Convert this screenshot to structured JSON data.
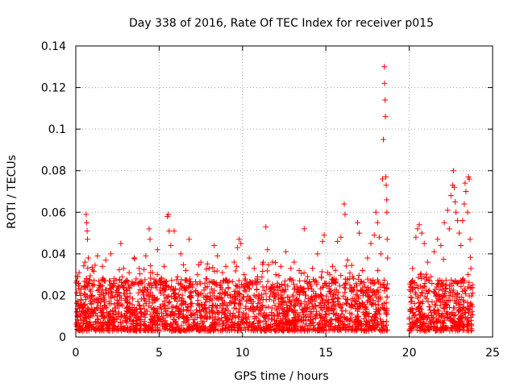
{
  "chart_data": {
    "type": "scatter",
    "title": "Day 338 of 2016, Rate Of TEC Index for receiver p015",
    "xlabel": "GPS time / hours",
    "ylabel": "ROTI / TECUs",
    "xlim": [
      0,
      25
    ],
    "ylim": [
      0,
      0.14
    ],
    "xticks": [
      0,
      5,
      10,
      15,
      20,
      25
    ],
    "xtick_labels": [
      "0",
      "5",
      "10",
      "15",
      "20",
      "25"
    ],
    "yticks": [
      0,
      0.02,
      0.04,
      0.06,
      0.08,
      0.1,
      0.12,
      0.14
    ],
    "ytick_labels": [
      "0",
      "0.02",
      "0.04",
      "0.06",
      "0.08",
      "0.1",
      "0.12",
      "0.14"
    ],
    "grid": true,
    "marker": "+",
    "color": "#ff0000",
    "data_gap_hours": [
      18.7,
      20.0
    ],
    "series": [
      {
        "name": "ROTI",
        "points": [
          [
            0.05,
            0.012
          ],
          [
            0.12,
            0.029
          ],
          [
            0.2,
            0.031
          ],
          [
            0.3,
            0.02
          ],
          [
            0.45,
            0.015
          ],
          [
            0.55,
            0.036
          ],
          [
            0.62,
            0.059
          ],
          [
            0.65,
            0.055
          ],
          [
            0.68,
            0.051
          ],
          [
            0.7,
            0.047
          ],
          [
            0.75,
            0.038
          ],
          [
            0.9,
            0.022
          ],
          [
            1.1,
            0.018
          ],
          [
            1.3,
            0.039
          ],
          [
            1.5,
            0.025
          ],
          [
            1.6,
            0.034
          ],
          [
            1.8,
            0.037
          ],
          [
            2.0,
            0.016
          ],
          [
            2.1,
            0.04
          ],
          [
            2.3,
            0.028
          ],
          [
            2.7,
            0.045
          ],
          [
            2.9,
            0.024
          ],
          [
            3.2,
            0.031
          ],
          [
            3.5,
            0.038
          ],
          [
            3.8,
            0.033
          ],
          [
            4.0,
            0.022
          ],
          [
            4.2,
            0.039
          ],
          [
            4.4,
            0.052
          ],
          [
            4.45,
            0.047
          ],
          [
            4.6,
            0.031
          ],
          [
            4.9,
            0.042
          ],
          [
            5.1,
            0.025
          ],
          [
            5.3,
            0.034
          ],
          [
            5.5,
            0.058
          ],
          [
            5.55,
            0.059
          ],
          [
            5.6,
            0.051
          ],
          [
            5.7,
            0.044
          ],
          [
            5.9,
            0.051
          ],
          [
            6.1,
            0.029
          ],
          [
            6.3,
            0.04
          ],
          [
            6.6,
            0.032
          ],
          [
            6.8,
            0.047
          ],
          [
            7.0,
            0.024
          ],
          [
            7.3,
            0.03
          ],
          [
            7.5,
            0.036
          ],
          [
            7.8,
            0.028
          ],
          [
            8.0,
            0.033
          ],
          [
            8.3,
            0.044
          ],
          [
            8.5,
            0.039
          ],
          [
            8.8,
            0.031
          ],
          [
            9.0,
            0.034
          ],
          [
            9.2,
            0.027
          ],
          [
            9.5,
            0.036
          ],
          [
            9.7,
            0.043
          ],
          [
            9.8,
            0.047
          ],
          [
            9.9,
            0.045
          ],
          [
            10.1,
            0.03
          ],
          [
            10.4,
            0.038
          ],
          [
            10.7,
            0.033
          ],
          [
            10.9,
            0.029
          ],
          [
            11.2,
            0.035
          ],
          [
            11.4,
            0.053
          ],
          [
            11.5,
            0.042
          ],
          [
            11.8,
            0.036
          ],
          [
            12.0,
            0.03
          ],
          [
            12.3,
            0.034
          ],
          [
            12.6,
            0.041
          ],
          [
            12.9,
            0.033
          ],
          [
            13.1,
            0.036
          ],
          [
            13.4,
            0.032
          ],
          [
            13.7,
            0.052
          ],
          [
            13.9,
            0.029
          ],
          [
            14.2,
            0.033
          ],
          [
            14.5,
            0.04
          ],
          [
            14.8,
            0.046
          ],
          [
            14.9,
            0.049
          ],
          [
            15.1,
            0.031
          ],
          [
            15.4,
            0.034
          ],
          [
            15.7,
            0.046
          ],
          [
            15.9,
            0.048
          ],
          [
            16.1,
            0.064
          ],
          [
            16.15,
            0.059
          ],
          [
            16.3,
            0.037
          ],
          [
            16.6,
            0.029
          ],
          [
            16.9,
            0.055
          ],
          [
            17.0,
            0.05
          ],
          [
            17.2,
            0.032
          ],
          [
            17.5,
            0.038
          ],
          [
            17.7,
            0.045
          ],
          [
            17.9,
            0.049
          ],
          [
            18.0,
            0.06
          ],
          [
            18.1,
            0.055
          ],
          [
            18.2,
            0.048
          ],
          [
            18.3,
            0.04
          ],
          [
            18.4,
            0.076
          ],
          [
            18.45,
            0.095
          ],
          [
            18.5,
            0.13
          ],
          [
            18.52,
            0.122
          ],
          [
            18.55,
            0.114
          ],
          [
            18.57,
            0.106
          ],
          [
            18.6,
            0.077
          ],
          [
            18.62,
            0.073
          ],
          [
            18.65,
            0.066
          ],
          [
            18.66,
            0.06
          ],
          [
            18.68,
            0.047
          ],
          [
            18.7,
            0.038
          ],
          [
            20.1,
            0.022
          ],
          [
            20.2,
            0.033
          ],
          [
            20.4,
            0.048
          ],
          [
            20.5,
            0.052
          ],
          [
            20.6,
            0.054
          ],
          [
            20.75,
            0.05
          ],
          [
            20.9,
            0.045
          ],
          [
            21.1,
            0.036
          ],
          [
            21.3,
            0.029
          ],
          [
            21.5,
            0.041
          ],
          [
            21.7,
            0.047
          ],
          [
            21.9,
            0.044
          ],
          [
            22.1,
            0.055
          ],
          [
            22.3,
            0.061
          ],
          [
            22.4,
            0.052
          ],
          [
            22.5,
            0.068
          ],
          [
            22.6,
            0.073
          ],
          [
            22.65,
            0.08
          ],
          [
            22.7,
            0.072
          ],
          [
            22.75,
            0.065
          ],
          [
            22.8,
            0.06
          ],
          [
            22.9,
            0.056
          ],
          [
            23.0,
            0.05
          ],
          [
            23.1,
            0.044
          ],
          [
            23.2,
            0.056
          ],
          [
            23.3,
            0.064
          ],
          [
            23.35,
            0.074
          ],
          [
            23.4,
            0.07
          ],
          [
            23.5,
            0.06
          ],
          [
            23.55,
            0.077
          ],
          [
            23.6,
            0.076
          ],
          [
            23.65,
            0.047
          ],
          [
            23.7,
            0.033
          ],
          [
            23.8,
            0.025
          ]
        ]
      }
    ],
    "noise_band": {
      "segments_hours": [
        [
          0,
          18.7
        ],
        [
          20.0,
          23.8
        ]
      ],
      "typical_min": 0.003,
      "typical_max": 0.028
    }
  }
}
